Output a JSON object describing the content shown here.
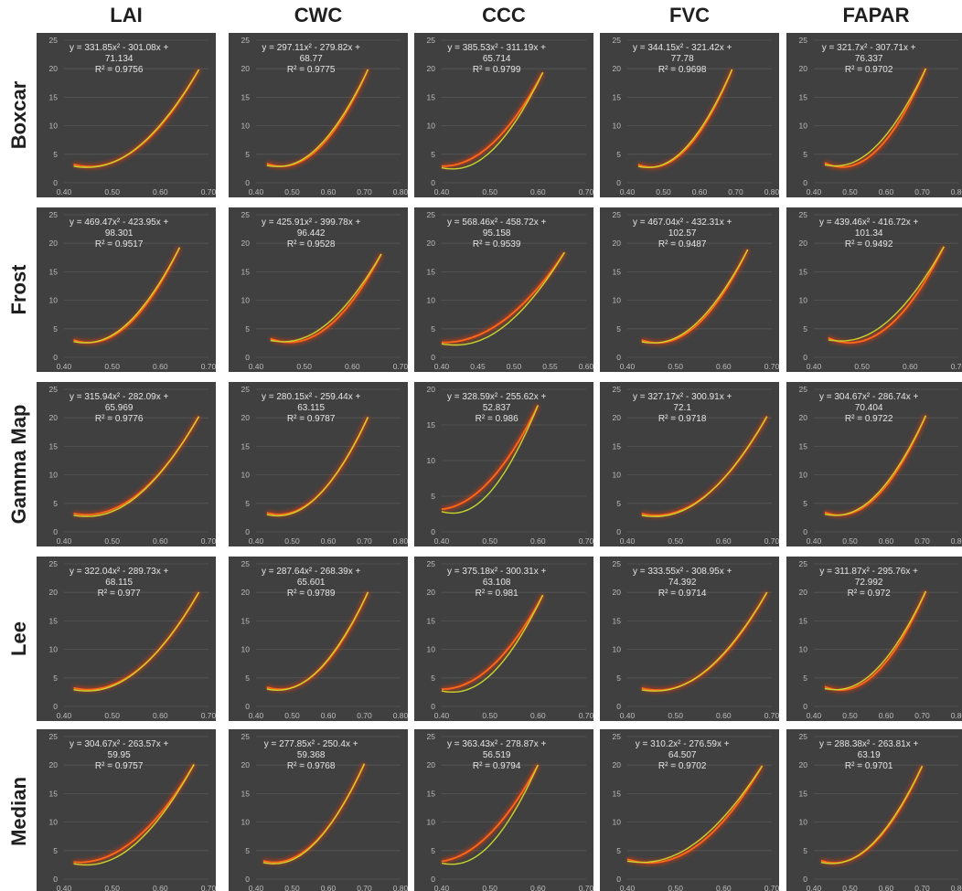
{
  "columns": [
    "LAI",
    "CWC",
    "CCC",
    "FVC",
    "FAPAR"
  ],
  "rows": [
    "Boxcar",
    "Frost",
    "Gamma Map",
    "Lee",
    "Median"
  ],
  "colors": {
    "panel_bg": "#404040",
    "trend_line": "#ff6a1a",
    "trend_glow": "#ff3b00",
    "data_curve": "#c7d62e",
    "axis_text": "#bdbdbd",
    "equation_text": "#e6e6e6"
  },
  "chart_data": [
    {
      "type": "line",
      "row": "Boxcar",
      "column": "LAI",
      "equation": [
        "y = 331.85x² - 301.08x +",
        "71.134",
        "R² = 0.9756"
      ],
      "coefficients": [
        331.85,
        -301.08,
        71.134
      ],
      "r2": 0.9756,
      "xlim": [
        0.4,
        0.7
      ],
      "ylim": [
        0,
        25
      ],
      "xticks": [
        "0.40",
        "0.50",
        "0.60",
        "0.70"
      ],
      "yticks": [
        "0",
        "5",
        "10",
        "15",
        "20",
        "25"
      ],
      "x_range": [
        0.42,
        0.68
      ]
    },
    {
      "type": "line",
      "row": "Boxcar",
      "column": "CWC",
      "equation": [
        "y = 297.11x² - 279.82x +",
        "68.77",
        "R² = 0.9775"
      ],
      "coefficients": [
        297.11,
        -279.82,
        68.77
      ],
      "r2": 0.9775,
      "xlim": [
        0.4,
        0.8
      ],
      "ylim": [
        0,
        25
      ],
      "xticks": [
        "0.40",
        "0.50",
        "0.60",
        "0.70",
        "0.80"
      ],
      "yticks": [
        "0",
        "5",
        "10",
        "15",
        "20",
        "25"
      ],
      "x_range": [
        0.43,
        0.71
      ]
    },
    {
      "type": "line",
      "row": "Boxcar",
      "column": "CCC",
      "equation": [
        "y = 385.53x² - 311.19x +",
        "65.714",
        "R² = 0.9799"
      ],
      "coefficients": [
        385.53,
        -311.19,
        65.714
      ],
      "r2": 0.9799,
      "xlim": [
        0.4,
        0.7
      ],
      "ylim": [
        0,
        25
      ],
      "xticks": [
        "0.40",
        "0.50",
        "0.60",
        "0.70"
      ],
      "yticks": [
        "0",
        "5",
        "10",
        "15",
        "20",
        "25"
      ],
      "x_range": [
        0.4,
        0.61
      ]
    },
    {
      "type": "line",
      "row": "Boxcar",
      "column": "FVC",
      "equation": [
        "y = 344.15x² - 321.42x +",
        "77.78",
        "R² = 0.9698"
      ],
      "coefficients": [
        344.15,
        -321.42,
        77.78
      ],
      "r2": 0.9698,
      "xlim": [
        0.4,
        0.8
      ],
      "ylim": [
        0,
        25
      ],
      "xticks": [
        "0.40",
        "0.50",
        "0.60",
        "0.70",
        "0.80"
      ],
      "yticks": [
        "0",
        "5",
        "10",
        "15",
        "20",
        "25"
      ],
      "x_range": [
        0.43,
        0.69
      ]
    },
    {
      "type": "line",
      "row": "Boxcar",
      "column": "FAPAR",
      "equation": [
        "y = 321.7x² - 307.71x +",
        "76.337",
        "R² = 0.9702"
      ],
      "coefficients": [
        321.7,
        -307.71,
        76.337
      ],
      "r2": 0.9702,
      "xlim": [
        0.4,
        0.8
      ],
      "ylim": [
        0,
        25
      ],
      "xticks": [
        "0.40",
        "0.50",
        "0.60",
        "0.70",
        "0.80"
      ],
      "yticks": [
        "0",
        "5",
        "10",
        "15",
        "20",
        "25"
      ],
      "x_range": [
        0.43,
        0.71
      ]
    },
    {
      "type": "line",
      "row": "Frost",
      "column": "LAI",
      "equation": [
        "y = 469.47x² - 423.95x +",
        "98.301",
        "R² = 0.9517"
      ],
      "coefficients": [
        469.47,
        -423.95,
        98.301
      ],
      "r2": 0.9517,
      "xlim": [
        0.4,
        0.7
      ],
      "ylim": [
        0,
        25
      ],
      "xticks": [
        "0.40",
        "0.50",
        "0.60",
        "0.70"
      ],
      "yticks": [
        "0",
        "5",
        "10",
        "15",
        "20",
        "25"
      ],
      "x_range": [
        0.42,
        0.64
      ]
    },
    {
      "type": "line",
      "row": "Frost",
      "column": "CWC",
      "equation": [
        "y = 425.91x² - 399.78x +",
        "96.442",
        "R² = 0.9528"
      ],
      "coefficients": [
        425.91,
        -399.78,
        96.442
      ],
      "r2": 0.9528,
      "xlim": [
        0.4,
        0.7
      ],
      "ylim": [
        0,
        25
      ],
      "xticks": [
        "0.40",
        "0.50",
        "0.60",
        "0.70"
      ],
      "yticks": [
        "0",
        "5",
        "10",
        "15",
        "20",
        "25"
      ],
      "x_range": [
        0.43,
        0.66
      ]
    },
    {
      "type": "line",
      "row": "Frost",
      "column": "CCC",
      "equation": [
        "y = 568.46x² - 458.72x +",
        "95.158",
        "R² = 0.9539"
      ],
      "coefficients": [
        568.46,
        -458.72,
        95.158
      ],
      "r2": 0.9539,
      "xlim": [
        0.4,
        0.6
      ],
      "ylim": [
        0,
        25
      ],
      "xticks": [
        "0.40",
        "0.45",
        "0.50",
        "0.55",
        "0.60"
      ],
      "yticks": [
        "0",
        "5",
        "10",
        "15",
        "20",
        "25"
      ],
      "x_range": [
        0.4,
        0.57
      ]
    },
    {
      "type": "line",
      "row": "Frost",
      "column": "FVC",
      "equation": [
        "y = 467.04x² - 432.31x +",
        "102.57",
        "R² = 0.9487"
      ],
      "coefficients": [
        467.04,
        -432.31,
        102.57
      ],
      "r2": 0.9487,
      "xlim": [
        0.4,
        0.7
      ],
      "ylim": [
        0,
        25
      ],
      "xticks": [
        "0.40",
        "0.50",
        "0.60",
        "0.70"
      ],
      "yticks": [
        "0",
        "5",
        "10",
        "15",
        "20",
        "25"
      ],
      "x_range": [
        0.43,
        0.65
      ]
    },
    {
      "type": "line",
      "row": "Frost",
      "column": "FAPAR",
      "equation": [
        "y = 439.46x² - 416.72x +",
        "101.34",
        "R² = 0.9492"
      ],
      "coefficients": [
        439.46,
        -416.72,
        101.34
      ],
      "r2": 0.9492,
      "xlim": [
        0.4,
        0.7
      ],
      "ylim": [
        0,
        25
      ],
      "xticks": [
        "0.40",
        "0.50",
        "0.60",
        "0.70"
      ],
      "yticks": [
        "0",
        "5",
        "10",
        "15",
        "20",
        "25"
      ],
      "x_range": [
        0.43,
        0.67
      ]
    },
    {
      "type": "line",
      "row": "Gamma Map",
      "column": "LAI",
      "equation": [
        "y = 315.94x² - 282.09x +",
        "65.969",
        "R² = 0.9776"
      ],
      "coefficients": [
        315.94,
        -282.09,
        65.969
      ],
      "r2": 0.9776,
      "xlim": [
        0.4,
        0.7
      ],
      "ylim": [
        0,
        25
      ],
      "xticks": [
        "0.40",
        "0.50",
        "0.60",
        "0.70"
      ],
      "yticks": [
        "0",
        "5",
        "10",
        "15",
        "20",
        "25"
      ],
      "x_range": [
        0.42,
        0.68
      ]
    },
    {
      "type": "line",
      "row": "Gamma Map",
      "column": "CWC",
      "equation": [
        "y = 280.15x² - 259.44x +",
        "63.115",
        "R² = 0.9787"
      ],
      "coefficients": [
        280.15,
        -259.44,
        63.115
      ],
      "r2": 0.9787,
      "xlim": [
        0.4,
        0.8
      ],
      "ylim": [
        0,
        25
      ],
      "xticks": [
        "0.40",
        "0.50",
        "0.60",
        "0.70",
        "0.80"
      ],
      "yticks": [
        "0",
        "5",
        "10",
        "15",
        "20",
        "25"
      ],
      "x_range": [
        0.43,
        0.71
      ]
    },
    {
      "type": "line",
      "row": "Gamma Map",
      "column": "CCC",
      "equation": [
        "y = 328.59x² - 255.62x +",
        "52.837",
        "R² = 0.986"
      ],
      "coefficients": [
        328.59,
        -255.62,
        52.837
      ],
      "r2": 0.986,
      "xlim": [
        0.4,
        0.7
      ],
      "ylim": [
        0,
        20
      ],
      "xticks": [
        "0.40",
        "0.50",
        "0.60",
        "0.70"
      ],
      "yticks": [
        "0",
        "5",
        "10",
        "15",
        "20"
      ],
      "x_range": [
        0.4,
        0.6
      ]
    },
    {
      "type": "line",
      "row": "Gamma Map",
      "column": "FVC",
      "equation": [
        "y = 327.17x² - 300.91x +",
        "72.1",
        "R² = 0.9718"
      ],
      "coefficients": [
        327.17,
        -300.91,
        72.1
      ],
      "r2": 0.9718,
      "xlim": [
        0.4,
        0.7
      ],
      "ylim": [
        0,
        25
      ],
      "xticks": [
        "0.40",
        "0.50",
        "0.60",
        "0.70"
      ],
      "yticks": [
        "0",
        "5",
        "10",
        "15",
        "20",
        "25"
      ],
      "x_range": [
        0.43,
        0.69
      ]
    },
    {
      "type": "line",
      "row": "Gamma Map",
      "column": "FAPAR",
      "equation": [
        "y = 304.67x² - 286.74x +",
        "70.404",
        "R² = 0.9722"
      ],
      "coefficients": [
        304.67,
        -286.74,
        70.404
      ],
      "r2": 0.9722,
      "xlim": [
        0.4,
        0.8
      ],
      "ylim": [
        0,
        25
      ],
      "xticks": [
        "0.40",
        "0.50",
        "0.60",
        "0.70",
        "0.80"
      ],
      "yticks": [
        "0",
        "5",
        "10",
        "15",
        "20",
        "25"
      ],
      "x_range": [
        0.43,
        0.71
      ]
    },
    {
      "type": "line",
      "row": "Lee",
      "column": "LAI",
      "equation": [
        "y = 322.04x² - 289.73x +",
        "68.115",
        "R² = 0.977"
      ],
      "coefficients": [
        322.04,
        -289.73,
        68.115
      ],
      "r2": 0.977,
      "xlim": [
        0.4,
        0.7
      ],
      "ylim": [
        0,
        25
      ],
      "xticks": [
        "0.40",
        "0.50",
        "0.60",
        "0.70"
      ],
      "yticks": [
        "0",
        "5",
        "10",
        "15",
        "20",
        "25"
      ],
      "x_range": [
        0.42,
        0.68
      ]
    },
    {
      "type": "line",
      "row": "Lee",
      "column": "CWC",
      "equation": [
        "y = 287.64x² - 268.39x +",
        "65.601",
        "R² = 0.9789"
      ],
      "coefficients": [
        287.64,
        -268.39,
        65.601
      ],
      "r2": 0.9789,
      "xlim": [
        0.4,
        0.8
      ],
      "ylim": [
        0,
        25
      ],
      "xticks": [
        "0.40",
        "0.50",
        "0.60",
        "0.70",
        "0.80"
      ],
      "yticks": [
        "0",
        "5",
        "10",
        "15",
        "20",
        "25"
      ],
      "x_range": [
        0.43,
        0.71
      ]
    },
    {
      "type": "line",
      "row": "Lee",
      "column": "CCC",
      "equation": [
        "y = 375.18x² - 300.31x +",
        "63.108",
        "R² = 0.981"
      ],
      "coefficients": [
        375.18,
        -300.31,
        63.108
      ],
      "r2": 0.981,
      "xlim": [
        0.4,
        0.7
      ],
      "ylim": [
        0,
        25
      ],
      "xticks": [
        "0.40",
        "0.50",
        "0.60",
        "0.70"
      ],
      "yticks": [
        "0",
        "5",
        "10",
        "15",
        "20",
        "25"
      ],
      "x_range": [
        0.4,
        0.61
      ]
    },
    {
      "type": "line",
      "row": "Lee",
      "column": "FVC",
      "equation": [
        "y = 333.55x² - 308.95x +",
        "74.392",
        "R² = 0.9714"
      ],
      "coefficients": [
        333.55,
        -308.95,
        74.392
      ],
      "r2": 0.9714,
      "xlim": [
        0.4,
        0.7
      ],
      "ylim": [
        0,
        25
      ],
      "xticks": [
        "0.40",
        "0.50",
        "0.60",
        "0.70"
      ],
      "yticks": [
        "0",
        "5",
        "10",
        "15",
        "20",
        "25"
      ],
      "x_range": [
        0.43,
        0.69
      ]
    },
    {
      "type": "line",
      "row": "Lee",
      "column": "FAPAR",
      "equation": [
        "y = 311.87x² - 295.76x +",
        "72.992",
        "R² = 0.972"
      ],
      "coefficients": [
        311.87,
        -295.76,
        72.992
      ],
      "r2": 0.972,
      "xlim": [
        0.4,
        0.8
      ],
      "ylim": [
        0,
        25
      ],
      "xticks": [
        "0.40",
        "0.50",
        "0.60",
        "0.70",
        "0.80"
      ],
      "yticks": [
        "0",
        "5",
        "10",
        "15",
        "20",
        "25"
      ],
      "x_range": [
        0.43,
        0.71
      ]
    },
    {
      "type": "line",
      "row": "Median",
      "column": "LAI",
      "equation": [
        "y = 304.67x² - 263.57x +",
        "59.95",
        "R² = 0.9757"
      ],
      "coefficients": [
        304.67,
        -263.57,
        59.95
      ],
      "r2": 0.9757,
      "xlim": [
        0.4,
        0.7
      ],
      "ylim": [
        0,
        25
      ],
      "xticks": [
        "0.40",
        "0.50",
        "0.60",
        "0.70"
      ],
      "yticks": [
        "0",
        "5",
        "10",
        "15",
        "20",
        "25"
      ],
      "x_range": [
        0.42,
        0.67
      ]
    },
    {
      "type": "line",
      "row": "Median",
      "column": "CWC",
      "equation": [
        "y = 277.85x² - 250.4x +",
        "59.368",
        "R² = 0.9768"
      ],
      "coefficients": [
        277.85,
        -250.4,
        59.368
      ],
      "r2": 0.9768,
      "xlim": [
        0.4,
        0.8
      ],
      "ylim": [
        0,
        25
      ],
      "xticks": [
        "0.40",
        "0.50",
        "0.60",
        "0.70",
        "0.80"
      ],
      "yticks": [
        "0",
        "5",
        "10",
        "15",
        "20",
        "25"
      ],
      "x_range": [
        0.42,
        0.7
      ]
    },
    {
      "type": "line",
      "row": "Median",
      "column": "CCC",
      "equation": [
        "y = 363.43x² - 278.87x +",
        "56.519",
        "R² = 0.9794"
      ],
      "coefficients": [
        363.43,
        -278.87,
        56.519
      ],
      "r2": 0.9794,
      "xlim": [
        0.4,
        0.7
      ],
      "ylim": [
        0,
        25
      ],
      "xticks": [
        "0.40",
        "0.50",
        "0.60",
        "0.70"
      ],
      "yticks": [
        "0",
        "5",
        "10",
        "15",
        "20",
        "25"
      ],
      "x_range": [
        0.4,
        0.6
      ]
    },
    {
      "type": "line",
      "row": "Median",
      "column": "FVC",
      "equation": [
        "y = 310.2x² - 276.59x +",
        "64.507",
        "R² = 0.9702"
      ],
      "coefficients": [
        310.2,
        -276.59,
        64.507
      ],
      "r2": 0.9702,
      "xlim": [
        0.4,
        0.7
      ],
      "ylim": [
        0,
        25
      ],
      "xticks": [
        "0.40",
        "0.50",
        "0.60",
        "0.70"
      ],
      "yticks": [
        "0",
        "5",
        "10",
        "15",
        "20",
        "25"
      ],
      "x_range": [
        0.4,
        0.68
      ]
    },
    {
      "type": "line",
      "row": "Median",
      "column": "FAPAR",
      "equation": [
        "y = 288.38x² - 263.81x +",
        "63.19",
        "R² = 0.9701"
      ],
      "coefficients": [
        288.38,
        -263.81,
        63.19
      ],
      "r2": 0.9701,
      "xlim": [
        0.4,
        0.8
      ],
      "ylim": [
        0,
        25
      ],
      "xticks": [
        "0.40",
        "0.50",
        "0.60",
        "0.70",
        "0.80"
      ],
      "yticks": [
        "0",
        "5",
        "10",
        "15",
        "20",
        "25"
      ],
      "x_range": [
        0.42,
        0.7
      ]
    }
  ]
}
